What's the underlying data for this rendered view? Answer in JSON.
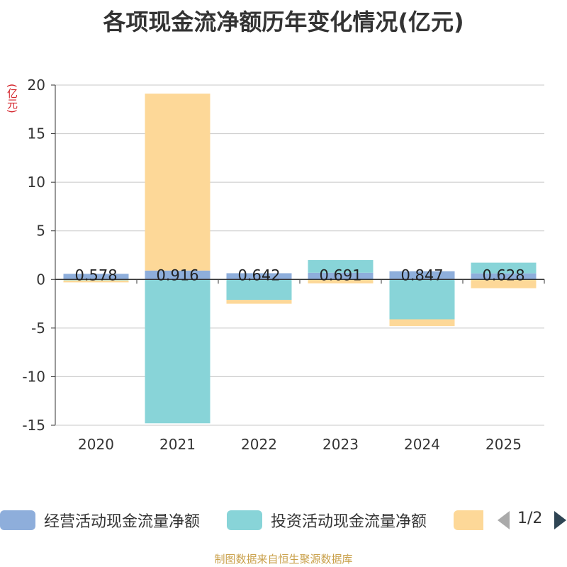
{
  "chart_data": {
    "type": "bar",
    "stacked": true,
    "title": "各项现金流净额历年变化情况(亿元)",
    "ylabel": "(亿元)",
    "categories": [
      "2020",
      "2021",
      "2022",
      "2023",
      "2024",
      "2025"
    ],
    "ylim": [
      -15,
      20
    ],
    "yticks": [
      20,
      15,
      10,
      5,
      0,
      -5,
      -10,
      -15
    ],
    "series": [
      {
        "name": "经营活动现金流量净额",
        "color": "#8eaedb",
        "values": [
          0.578,
          0.916,
          0.642,
          0.691,
          0.847,
          0.628
        ]
      },
      {
        "name": "投资活动现金流量净额",
        "color": "#88d4d8",
        "values": [
          -0.1,
          -14.8,
          -2.1,
          1.3,
          -4.1,
          1.1
        ]
      },
      {
        "name": "",
        "color": "#fdd898",
        "values": [
          -0.2,
          18.2,
          -0.4,
          -0.4,
          -0.7,
          -0.9
        ]
      }
    ],
    "data_labels": [
      "0.578",
      "0.916",
      "0.642",
      "0.691",
      "0.847",
      "0.628"
    ],
    "legend": {
      "page": "1/2"
    },
    "source": "制图数据来自恒生聚源数据库"
  }
}
